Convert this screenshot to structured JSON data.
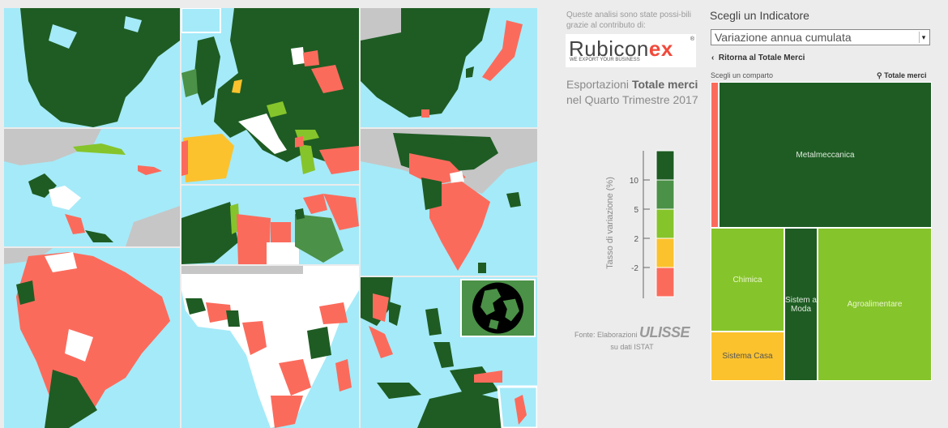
{
  "sponsor": {
    "text": "Queste analisi sono state possi-bili grazie al contributo di:",
    "logo_main": "Rubicon",
    "logo_ex": "ex",
    "logo_reg": "®",
    "logo_sub": "WE EXPORT YOUR BUSINESS"
  },
  "export_title": {
    "prefix": "Esportazioni ",
    "bold": "Totale merci",
    "suffix": "nel Quarto Trimestre 2017"
  },
  "legend": {
    "axis_label": "Tasso di variazione (%)",
    "ticks": [
      "10",
      "5",
      "2",
      "-2"
    ],
    "colors": [
      "#1e5c23",
      "#4b9147",
      "#86c42b",
      "#fbc22d",
      "#fb6b5c"
    ]
  },
  "source": {
    "prefix": "Fonte: Elaborazioni",
    "brand": "ULISSE",
    "suffix": "su dati ISTAT"
  },
  "indicator": {
    "title": "Scegli un Indicatore",
    "selected": "Variazione annua cumulata",
    "back_link": "Ritorna al Totale Merci",
    "comparto_label": "Scegli un comparto",
    "total_label": "Totale merci"
  },
  "treemap": {
    "sectors": [
      {
        "label": "",
        "color": "#fb6b5c"
      },
      {
        "label": "Metalmeccanica",
        "color": "#1e5c23"
      },
      {
        "label": "Chimica",
        "color": "#86c42b"
      },
      {
        "label": "Sistem a Moda",
        "color": "#1e5c23"
      },
      {
        "label": "Agroalimentare",
        "color": "#86c42b"
      },
      {
        "label": "Sistema Casa",
        "color": "#fbc22d"
      }
    ]
  },
  "map_colors": {
    "sea": "#a5eaf8",
    "land_other": "#c6c6c6",
    "dark_green": "#1e5c23",
    "mid_green": "#4b9147",
    "light_green": "#86c42b",
    "yellow": "#fbc22d",
    "red": "#fb6b5c",
    "white": "#ffffff"
  },
  "icons": {
    "globe": "globe-icon",
    "pin": "pin-icon",
    "back": "chevron-left-icon",
    "dropdown": "dropdown-arrow-icon"
  }
}
